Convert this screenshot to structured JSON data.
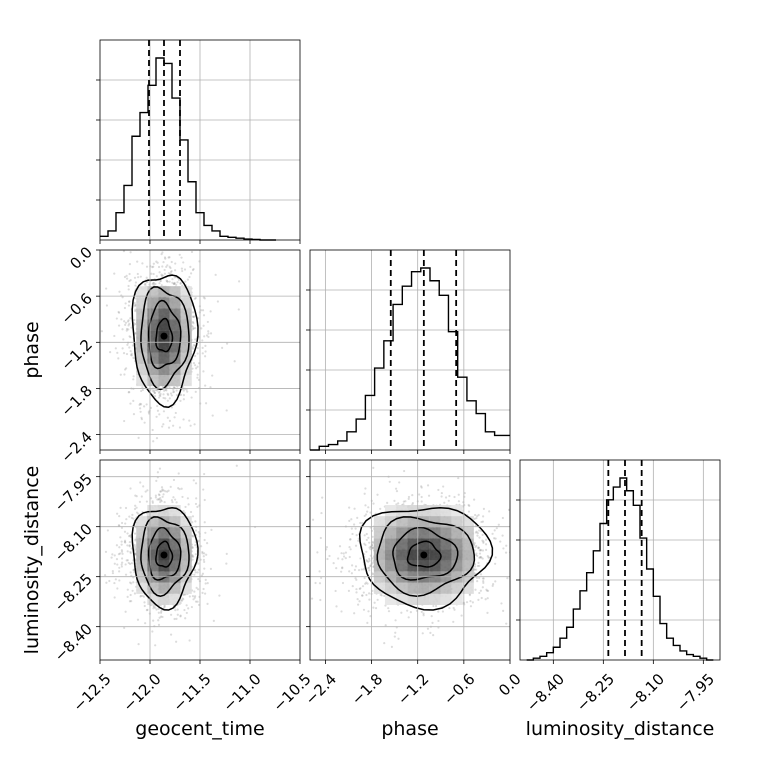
{
  "chart_data": {
    "type": "corner",
    "parameters": [
      "geocent_time",
      "phase",
      "luminosity_distance"
    ],
    "axes": {
      "geocent_time": {
        "label": "geocent_time",
        "range": [
          -12.5,
          -10.5
        ],
        "ticks": [
          -12.5,
          -12.0,
          -11.5,
          -11.0,
          -10.5
        ],
        "tick_labels": [
          "−12.5",
          "−12.0",
          "−11.5",
          "−11.0",
          "−10.5"
        ]
      },
      "phase": {
        "label": "phase",
        "range": [
          -2.6,
          0.0
        ],
        "ticks": [
          -2.4,
          -1.8,
          -1.2,
          -0.6,
          0.0
        ],
        "tick_labels": [
          "−2.4",
          "−1.8",
          "−1.2",
          "−0.6",
          "0.0"
        ]
      },
      "luminosity_distance": {
        "label": "luminosity_distance",
        "range": [
          -8.5,
          -7.9
        ],
        "ticks": [
          -8.4,
          -8.25,
          -8.1,
          -7.95
        ],
        "tick_labels": [
          "−8.40",
          "−8.25",
          "−8.10",
          "−7.95"
        ]
      }
    },
    "histograms": [
      {
        "parameter": "geocent_time",
        "quantiles": [
          -12.01,
          -11.86,
          -11.7
        ],
        "bin_edges": [
          -12.5,
          -12.42,
          -12.34,
          -12.26,
          -12.18,
          -12.1,
          -12.02,
          -11.94,
          -11.86,
          -11.78,
          -11.7,
          -11.62,
          -11.54,
          -11.46,
          -11.38,
          -11.3,
          -11.22,
          -11.14,
          -11.06,
          -10.98,
          -10.9,
          -10.82,
          -10.74
        ],
        "counts": [
          0.02,
          0.05,
          0.15,
          0.3,
          0.57,
          0.7,
          0.85,
          1.0,
          0.97,
          0.78,
          0.55,
          0.32,
          0.15,
          0.08,
          0.05,
          0.02,
          0.015,
          0.01,
          0.005,
          0.003,
          0.0,
          0.0
        ]
      },
      {
        "parameter": "phase",
        "quantiles": [
          -1.55,
          -1.12,
          -0.7
        ],
        "bin_edges": [
          -2.6,
          -2.48,
          -2.36,
          -2.24,
          -2.12,
          -2.0,
          -1.88,
          -1.76,
          -1.64,
          -1.52,
          -1.4,
          -1.28,
          -1.16,
          -1.04,
          -0.92,
          -0.8,
          -0.68,
          -0.56,
          -0.44,
          -0.32,
          -0.2,
          -0.08,
          0.0
        ],
        "counts": [
          0.0,
          0.02,
          0.03,
          0.05,
          0.1,
          0.17,
          0.3,
          0.45,
          0.6,
          0.8,
          0.9,
          0.98,
          1.0,
          0.93,
          0.85,
          0.65,
          0.4,
          0.27,
          0.2,
          0.1,
          0.08,
          0.08
        ]
      },
      {
        "parameter": "luminosity_distance",
        "quantiles": [
          -8.235,
          -8.185,
          -8.135
        ],
        "bin_edges": [
          -8.48,
          -8.46,
          -8.44,
          -8.42,
          -8.4,
          -8.38,
          -8.36,
          -8.34,
          -8.32,
          -8.3,
          -8.28,
          -8.26,
          -8.24,
          -8.22,
          -8.2,
          -8.18,
          -8.16,
          -8.14,
          -8.12,
          -8.1,
          -8.08,
          -8.06,
          -8.04,
          -8.02,
          -8.0,
          -7.98,
          -7.96,
          -7.94,
          -7.92
        ],
        "counts": [
          0.0,
          0.01,
          0.02,
          0.04,
          0.07,
          0.12,
          0.18,
          0.28,
          0.38,
          0.48,
          0.6,
          0.75,
          0.88,
          0.95,
          1.0,
          0.93,
          0.85,
          0.67,
          0.5,
          0.35,
          0.2,
          0.12,
          0.08,
          0.05,
          0.03,
          0.02,
          0.01,
          0.0
        ]
      }
    ],
    "joint_distributions": [
      {
        "x": "geocent_time",
        "y": "phase",
        "center": [
          -11.86,
          -1.12
        ],
        "sigma": [
          0.16,
          0.42
        ],
        "correlation": 0.0
      },
      {
        "x": "geocent_time",
        "y": "luminosity_distance",
        "center": [
          -11.86,
          -8.185
        ],
        "sigma": [
          0.16,
          0.075
        ],
        "correlation": 0.0
      },
      {
        "x": "phase",
        "y": "luminosity_distance",
        "center": [
          -1.12,
          -8.185
        ],
        "sigma": [
          0.42,
          0.075
        ],
        "correlation": 0.0
      }
    ],
    "contour_levels": [
      0.5,
      1.0,
      1.5,
      2.0
    ],
    "grid": true,
    "colors": {
      "line": "#000000",
      "grid": "#b0b0b0",
      "points": "#9a9a9a"
    }
  }
}
